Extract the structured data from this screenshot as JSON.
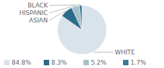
{
  "chart_data": {
    "type": "pie",
    "categories": [
      "WHITE",
      "ASIAN",
      "HISPANIC",
      "BLACK"
    ],
    "values": [
      84.8,
      8.3,
      5.2,
      1.7
    ],
    "value_labels": [
      "84.8%",
      "8.3%",
      "5.2%",
      "1.7%"
    ],
    "colors": [
      "#d9e3eb",
      "#2d6b8a",
      "#a8bfcc",
      "#3d7a96"
    ],
    "legend": "bottom"
  }
}
